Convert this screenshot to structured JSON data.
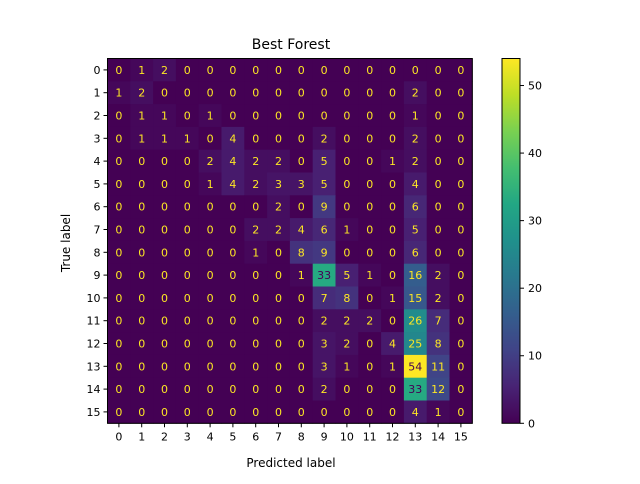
{
  "chart_data": {
    "type": "heatmap",
    "title": "Best Forest",
    "xlabel": "Predicted label",
    "ylabel": "True label",
    "x_tick_labels": [
      "0",
      "1",
      "2",
      "3",
      "4",
      "5",
      "6",
      "7",
      "8",
      "9",
      "10",
      "11",
      "12",
      "13",
      "14",
      "15"
    ],
    "y_tick_labels": [
      "0",
      "1",
      "2",
      "3",
      "4",
      "5",
      "6",
      "7",
      "8",
      "9",
      "10",
      "11",
      "12",
      "13",
      "14",
      "15"
    ],
    "matrix": [
      [
        0,
        1,
        2,
        0,
        0,
        0,
        0,
        0,
        0,
        0,
        0,
        0,
        0,
        0,
        0,
        0
      ],
      [
        1,
        2,
        0,
        0,
        0,
        0,
        0,
        0,
        0,
        0,
        0,
        0,
        0,
        2,
        0,
        0
      ],
      [
        0,
        1,
        1,
        0,
        1,
        0,
        0,
        0,
        0,
        0,
        0,
        0,
        0,
        1,
        0,
        0
      ],
      [
        0,
        1,
        1,
        1,
        0,
        4,
        0,
        0,
        0,
        2,
        0,
        0,
        0,
        2,
        0,
        0
      ],
      [
        0,
        0,
        0,
        0,
        2,
        4,
        2,
        2,
        0,
        5,
        0,
        0,
        1,
        2,
        0,
        0
      ],
      [
        0,
        0,
        0,
        0,
        1,
        4,
        2,
        3,
        3,
        5,
        0,
        0,
        0,
        4,
        0,
        0
      ],
      [
        0,
        0,
        0,
        0,
        0,
        0,
        0,
        2,
        0,
        9,
        0,
        0,
        0,
        6,
        0,
        0
      ],
      [
        0,
        0,
        0,
        0,
        0,
        0,
        2,
        2,
        4,
        6,
        1,
        0,
        0,
        5,
        0,
        0
      ],
      [
        0,
        0,
        0,
        0,
        0,
        0,
        1,
        0,
        8,
        9,
        0,
        0,
        0,
        6,
        0,
        0
      ],
      [
        0,
        0,
        0,
        0,
        0,
        0,
        0,
        0,
        1,
        33,
        5,
        1,
        0,
        16,
        2,
        0
      ],
      [
        0,
        0,
        0,
        0,
        0,
        0,
        0,
        0,
        0,
        7,
        8,
        0,
        1,
        15,
        2,
        0
      ],
      [
        0,
        0,
        0,
        0,
        0,
        0,
        0,
        0,
        0,
        2,
        2,
        2,
        0,
        26,
        7,
        0
      ],
      [
        0,
        0,
        0,
        0,
        0,
        0,
        0,
        0,
        0,
        3,
        2,
        0,
        4,
        25,
        8,
        0
      ],
      [
        0,
        0,
        0,
        0,
        0,
        0,
        0,
        0,
        0,
        3,
        1,
        0,
        1,
        54,
        11,
        0
      ],
      [
        0,
        0,
        0,
        0,
        0,
        0,
        0,
        0,
        0,
        2,
        0,
        0,
        0,
        33,
        12,
        0
      ],
      [
        0,
        0,
        0,
        0,
        0,
        0,
        0,
        0,
        0,
        0,
        0,
        0,
        0,
        4,
        1,
        0
      ]
    ],
    "colormap": "viridis",
    "color_range": [
      0,
      54
    ],
    "colorbar_ticks": [
      0,
      10,
      20,
      30,
      40,
      50
    ],
    "grid": false
  }
}
